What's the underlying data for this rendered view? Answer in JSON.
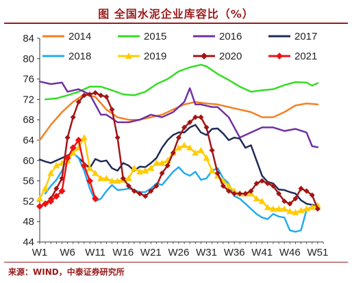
{
  "header": {
    "title": "图  全国水泥企业库容比（%）"
  },
  "footer": {
    "source": "来源：WIND，中泰证券研究所"
  },
  "chart_data": {
    "type": "line",
    "title": "全国水泥企业库容比（%）",
    "xlabel": "",
    "ylabel": "",
    "ylim": [
      44,
      84
    ],
    "yticks": [
      44,
      48,
      52,
      56,
      60,
      64,
      68,
      72,
      76,
      80,
      84
    ],
    "xlim": [
      1,
      52
    ],
    "xtick_labels": [
      "W1",
      "W6",
      "W11",
      "W16",
      "W21",
      "W26",
      "W31",
      "W36",
      "W41",
      "W46",
      "W51"
    ],
    "xtick_weeks": [
      1,
      6,
      11,
      16,
      21,
      26,
      31,
      36,
      41,
      46,
      51
    ],
    "grid": false,
    "legend_position": "top",
    "series": [
      {
        "name": "2014",
        "color": "#f57f20",
        "marker": "none",
        "x": [
          1,
          3,
          5,
          7,
          9,
          11,
          13,
          15,
          17,
          19,
          21,
          23,
          25,
          27,
          29,
          31,
          33,
          35,
          37,
          39,
          41,
          43,
          45,
          47,
          49,
          51
        ],
        "values": [
          64,
          67,
          69.5,
          71.5,
          73,
          72.5,
          70,
          68.5,
          68,
          68,
          68.5,
          69,
          70,
          71,
          71.5,
          71.2,
          71,
          70.5,
          70,
          69.5,
          68.5,
          68.5,
          69.5,
          70.8,
          71.2,
          71
        ]
      },
      {
        "name": "2015",
        "color": "#33dd22",
        "marker": "none",
        "x": [
          2,
          4,
          6,
          8,
          10,
          12,
          14,
          16,
          18,
          20,
          22,
          24,
          26,
          28,
          30,
          31,
          33,
          35,
          37,
          39,
          41,
          43,
          45,
          47,
          49,
          50,
          51
        ],
        "values": [
          72,
          72.2,
          72.8,
          73.5,
          74.5,
          74.5,
          73.8,
          73,
          72.8,
          73.5,
          75,
          76,
          77.5,
          78.3,
          78.8,
          78.5,
          77,
          75.8,
          74.5,
          73.5,
          73.8,
          74,
          74.8,
          75.4,
          75.3,
          74.7,
          75.2
        ]
      },
      {
        "name": "2016",
        "color": "#7030a0",
        "marker": "none",
        "x": [
          1,
          3,
          5,
          6,
          8,
          10,
          12,
          13,
          15,
          17,
          19,
          21,
          23,
          25,
          27,
          28,
          29,
          30,
          32,
          33,
          35,
          37,
          39,
          41,
          43,
          45,
          47,
          49,
          50,
          51
        ],
        "values": [
          75.5,
          75,
          75.3,
          73.5,
          74,
          73,
          69,
          69,
          67.5,
          67.5,
          68,
          69,
          68.5,
          69.5,
          71.5,
          74.2,
          71,
          71,
          70.5,
          70.5,
          68.5,
          64.5,
          65.5,
          66.5,
          66.5,
          65.8,
          66.2,
          65.5,
          62.8,
          62.6
        ]
      },
      {
        "name": "2017",
        "color": "#1f2a55",
        "marker": "none",
        "x": [
          1,
          2,
          3,
          4,
          5,
          6,
          7,
          8,
          9,
          10,
          11,
          12,
          13,
          14,
          15,
          16,
          17,
          18,
          19,
          20,
          21,
          22,
          23,
          24,
          25,
          26,
          27,
          28,
          29,
          30,
          31,
          32,
          33,
          34,
          35,
          36,
          37,
          38,
          39,
          40,
          41,
          42,
          43,
          44,
          45,
          46,
          47,
          48,
          49,
          50,
          51
        ],
        "values": [
          60.2,
          59.8,
          59.5,
          60,
          60.5,
          61,
          61.5,
          60.5,
          59.5,
          58.5,
          60.3,
          59.8,
          60,
          58.5,
          58,
          59.5,
          59,
          58,
          58.8,
          58.7,
          59.5,
          60.5,
          62.5,
          64,
          65,
          65.5,
          65.5,
          66.5,
          67,
          65.5,
          65,
          66.2,
          66.3,
          65.3,
          64,
          64.5,
          64.3,
          62.5,
          63,
          60,
          57,
          55.8,
          55.5,
          54.3,
          54.2,
          53.8,
          53.5,
          52.2,
          51.5,
          51.3,
          51
        ]
      },
      {
        "name": "2018",
        "color": "#22aaee",
        "marker": "none",
        "x": [
          2,
          3,
          4,
          5,
          6,
          7,
          8,
          9,
          10,
          11,
          12,
          13,
          14,
          15,
          16,
          17,
          18,
          19,
          20,
          21,
          22,
          23,
          24,
          25,
          26,
          27,
          28,
          29,
          30,
          31,
          32,
          33,
          34,
          35,
          36,
          37,
          38,
          39,
          40,
          41,
          42,
          43,
          44,
          45,
          46,
          47,
          48,
          49,
          50,
          51
        ],
        "values": [
          53.5,
          55,
          56.2,
          58,
          60.5,
          61.5,
          60.5,
          58,
          54.5,
          52,
          52.5,
          54,
          55.2,
          54.2,
          54.3,
          54.5,
          54.2,
          53.8,
          53.8,
          54.5,
          55.5,
          55.2,
          56.5,
          57.8,
          58.7,
          57.5,
          57,
          57.8,
          56.2,
          56.5,
          58,
          58.5,
          56.5,
          55.5,
          53,
          52.5,
          51.5,
          50.5,
          49.5,
          48.8,
          48.5,
          49.5,
          49,
          48.8,
          46.3,
          46,
          46.3,
          50.3,
          51,
          51.2
        ]
      },
      {
        "name": "2019",
        "color": "#ffcc00",
        "marker": "triangle",
        "x": [
          1,
          2,
          3,
          4,
          5,
          6,
          7,
          8,
          9,
          10,
          11,
          12,
          13,
          14,
          15,
          16,
          17,
          18,
          19,
          20,
          21,
          22,
          23,
          24,
          25,
          26,
          27,
          28,
          29,
          30,
          31,
          32,
          33,
          34,
          35,
          36,
          37,
          38,
          39,
          40,
          41,
          42,
          43,
          44,
          45,
          46,
          47,
          48,
          49,
          50,
          51
        ],
        "values": [
          52.5,
          54.5,
          57.5,
          59,
          59.5,
          60,
          61.5,
          62.5,
          64.5,
          58.5,
          57.5,
          56.5,
          56.5,
          56,
          56,
          56.2,
          56.5,
          58.5,
          57.8,
          58,
          58.5,
          59.5,
          59.5,
          60,
          61.5,
          62.5,
          63,
          62.5,
          61.5,
          62,
          60.5,
          58,
          57,
          56,
          55,
          54,
          53.5,
          53.5,
          53.5,
          52.5,
          52,
          50.8,
          50.5,
          50.5,
          50.5,
          50,
          49.8,
          50.2,
          50.5,
          50.8,
          51.2
        ]
      },
      {
        "name": "2020",
        "color": "#a31414",
        "marker": "diamond",
        "x": [
          1,
          2,
          3,
          4,
          5,
          6,
          7,
          8,
          9,
          10,
          11,
          12,
          13,
          14,
          15,
          16,
          17,
          18,
          19,
          20,
          21,
          22,
          23,
          24,
          25,
          26,
          27,
          28,
          29,
          30,
          31,
          32,
          33,
          34,
          35,
          36,
          37,
          38,
          39,
          40,
          41,
          42,
          43,
          44,
          45,
          46,
          47,
          48,
          49,
          50,
          51
        ],
        "values": [
          51,
          51.5,
          52.5,
          54.5,
          56.5,
          64.5,
          68.5,
          71.5,
          72.8,
          73,
          73.3,
          72.8,
          72.5,
          70,
          64.5,
          56.5,
          55,
          54,
          53.5,
          53,
          54,
          55,
          57.5,
          59,
          61.5,
          64.5,
          66.5,
          67.5,
          68.5,
          68.5,
          66.5,
          62,
          57.5,
          55,
          54,
          53.5,
          53.5,
          53.5,
          54,
          55.5,
          56,
          55.5,
          55,
          53.5,
          52,
          51.5,
          52.5,
          54.5,
          54,
          53.2,
          50.5
        ]
      },
      {
        "name": "2021",
        "color": "#ee1111",
        "marker": "diamond",
        "x": [
          1,
          2,
          3,
          4,
          5,
          6,
          7,
          8,
          9,
          10,
          11
        ],
        "values": [
          51,
          51.5,
          52,
          53,
          54,
          60.5,
          62.5,
          64,
          59,
          56,
          52.5
        ]
      }
    ]
  }
}
